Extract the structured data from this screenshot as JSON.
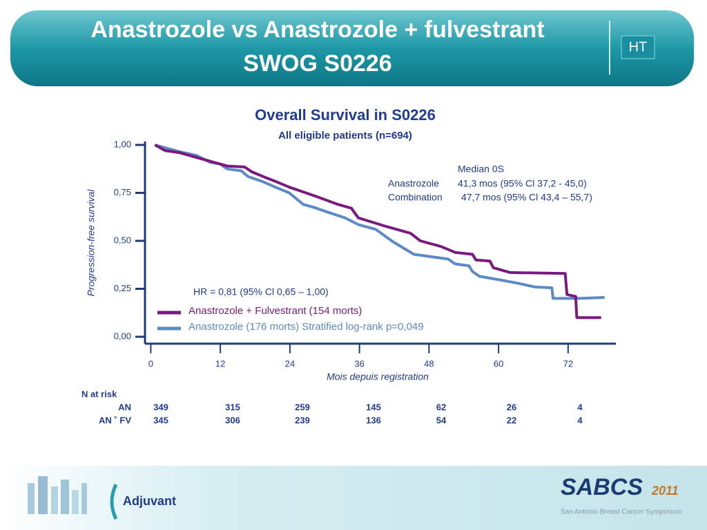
{
  "header": {
    "title_lines": [
      "Anastrozole vs Anastrozole + fulvestrant",
      "SWOG S0226"
    ],
    "badge": "HT"
  },
  "chart_data": {
    "type": "line",
    "step": true,
    "title": "Overall Survival in S0226",
    "subtitle": "All eligible patients (n=694)",
    "y_label": "Progression-free survival",
    "x_label": "Mois depuis registration",
    "xlim": [
      -1,
      80
    ],
    "xticks": [
      0,
      12,
      24,
      36,
      48,
      60,
      72
    ],
    "ylim": [
      0,
      1
    ],
    "yticks": [
      {
        "value": 0,
        "label": "0,00"
      },
      {
        "value": 0.25,
        "label": "0,25"
      },
      {
        "value": 0.5,
        "label": "0,50"
      },
      {
        "value": 0.75,
        "label": "0,75"
      },
      {
        "value": 1,
        "label": "1,00"
      }
    ],
    "series": [
      {
        "name": "Anastrozole + Fulvestrant (154 morts)",
        "color": "#7b1a7e",
        "x": [
          0.7,
          2.5,
          4.9,
          9.6,
          13.2,
          16.2,
          17.4,
          19.8,
          21.5,
          23.9,
          26.3,
          28.7,
          32.3,
          34.6,
          35.8,
          40.6,
          44.8,
          46.5,
          50.1,
          52.5,
          55.5,
          56.1,
          58.5,
          59.1,
          62,
          71.5,
          71.8,
          73.3,
          73.5,
          77.7
        ],
        "values": [
          1,
          0.97,
          0.96,
          0.92,
          0.89,
          0.885,
          0.86,
          0.83,
          0.81,
          0.78,
          0.755,
          0.73,
          0.69,
          0.67,
          0.62,
          0.575,
          0.54,
          0.5,
          0.47,
          0.44,
          0.43,
          0.4,
          0.395,
          0.36,
          0.335,
          0.33,
          0.22,
          0.21,
          0.1,
          0.1
        ]
      },
      {
        "name": "Anastrozole (176 morts) Stratified log-rank p=0,049",
        "color": "#5b8ac6",
        "x": [
          0.7,
          4.9,
          7.9,
          10.2,
          12,
          13.2,
          15.6,
          16.8,
          19.2,
          21.5,
          23.9,
          26.3,
          28.1,
          30.5,
          33.5,
          35.8,
          38.8,
          41.8,
          45.4,
          51.3,
          52.5,
          54.9,
          55.5,
          56.7,
          59.6,
          63.2,
          66.2,
          69.2,
          69.4,
          73.9,
          78.3
        ],
        "values": [
          1,
          0.965,
          0.945,
          0.91,
          0.9,
          0.875,
          0.865,
          0.835,
          0.81,
          0.78,
          0.75,
          0.69,
          0.675,
          0.65,
          0.62,
          0.585,
          0.56,
          0.495,
          0.43,
          0.405,
          0.38,
          0.37,
          0.34,
          0.315,
          0.3,
          0.28,
          0.26,
          0.255,
          0.2,
          0.2,
          0.205
        ]
      }
    ],
    "annotations": [
      "HR = 0,81 (95% Cl 0,65 – 1,00)",
      "Median 0S",
      "Anastrozole",
      "41,3 mos (95% Cl 37,2 - 45,0)",
      "Combination",
      "47,7 mos (95% Cl 43,4 – 55,7)"
    ]
  },
  "risk_table": {
    "title": "N at risk",
    "rows": [
      {
        "label": "AN",
        "values": [
          349,
          315,
          259,
          145,
          62,
          26,
          4
        ]
      },
      {
        "label": "AN ˚  FV",
        "values": [
          345,
          306,
          239,
          136,
          54,
          22,
          4
        ]
      }
    ]
  },
  "footer": {
    "section": "Adjuvant",
    "logo": "SABCS",
    "logo_year": "2011",
    "logo_subtitle": "San Antonio Breast Cancer Symposium"
  }
}
